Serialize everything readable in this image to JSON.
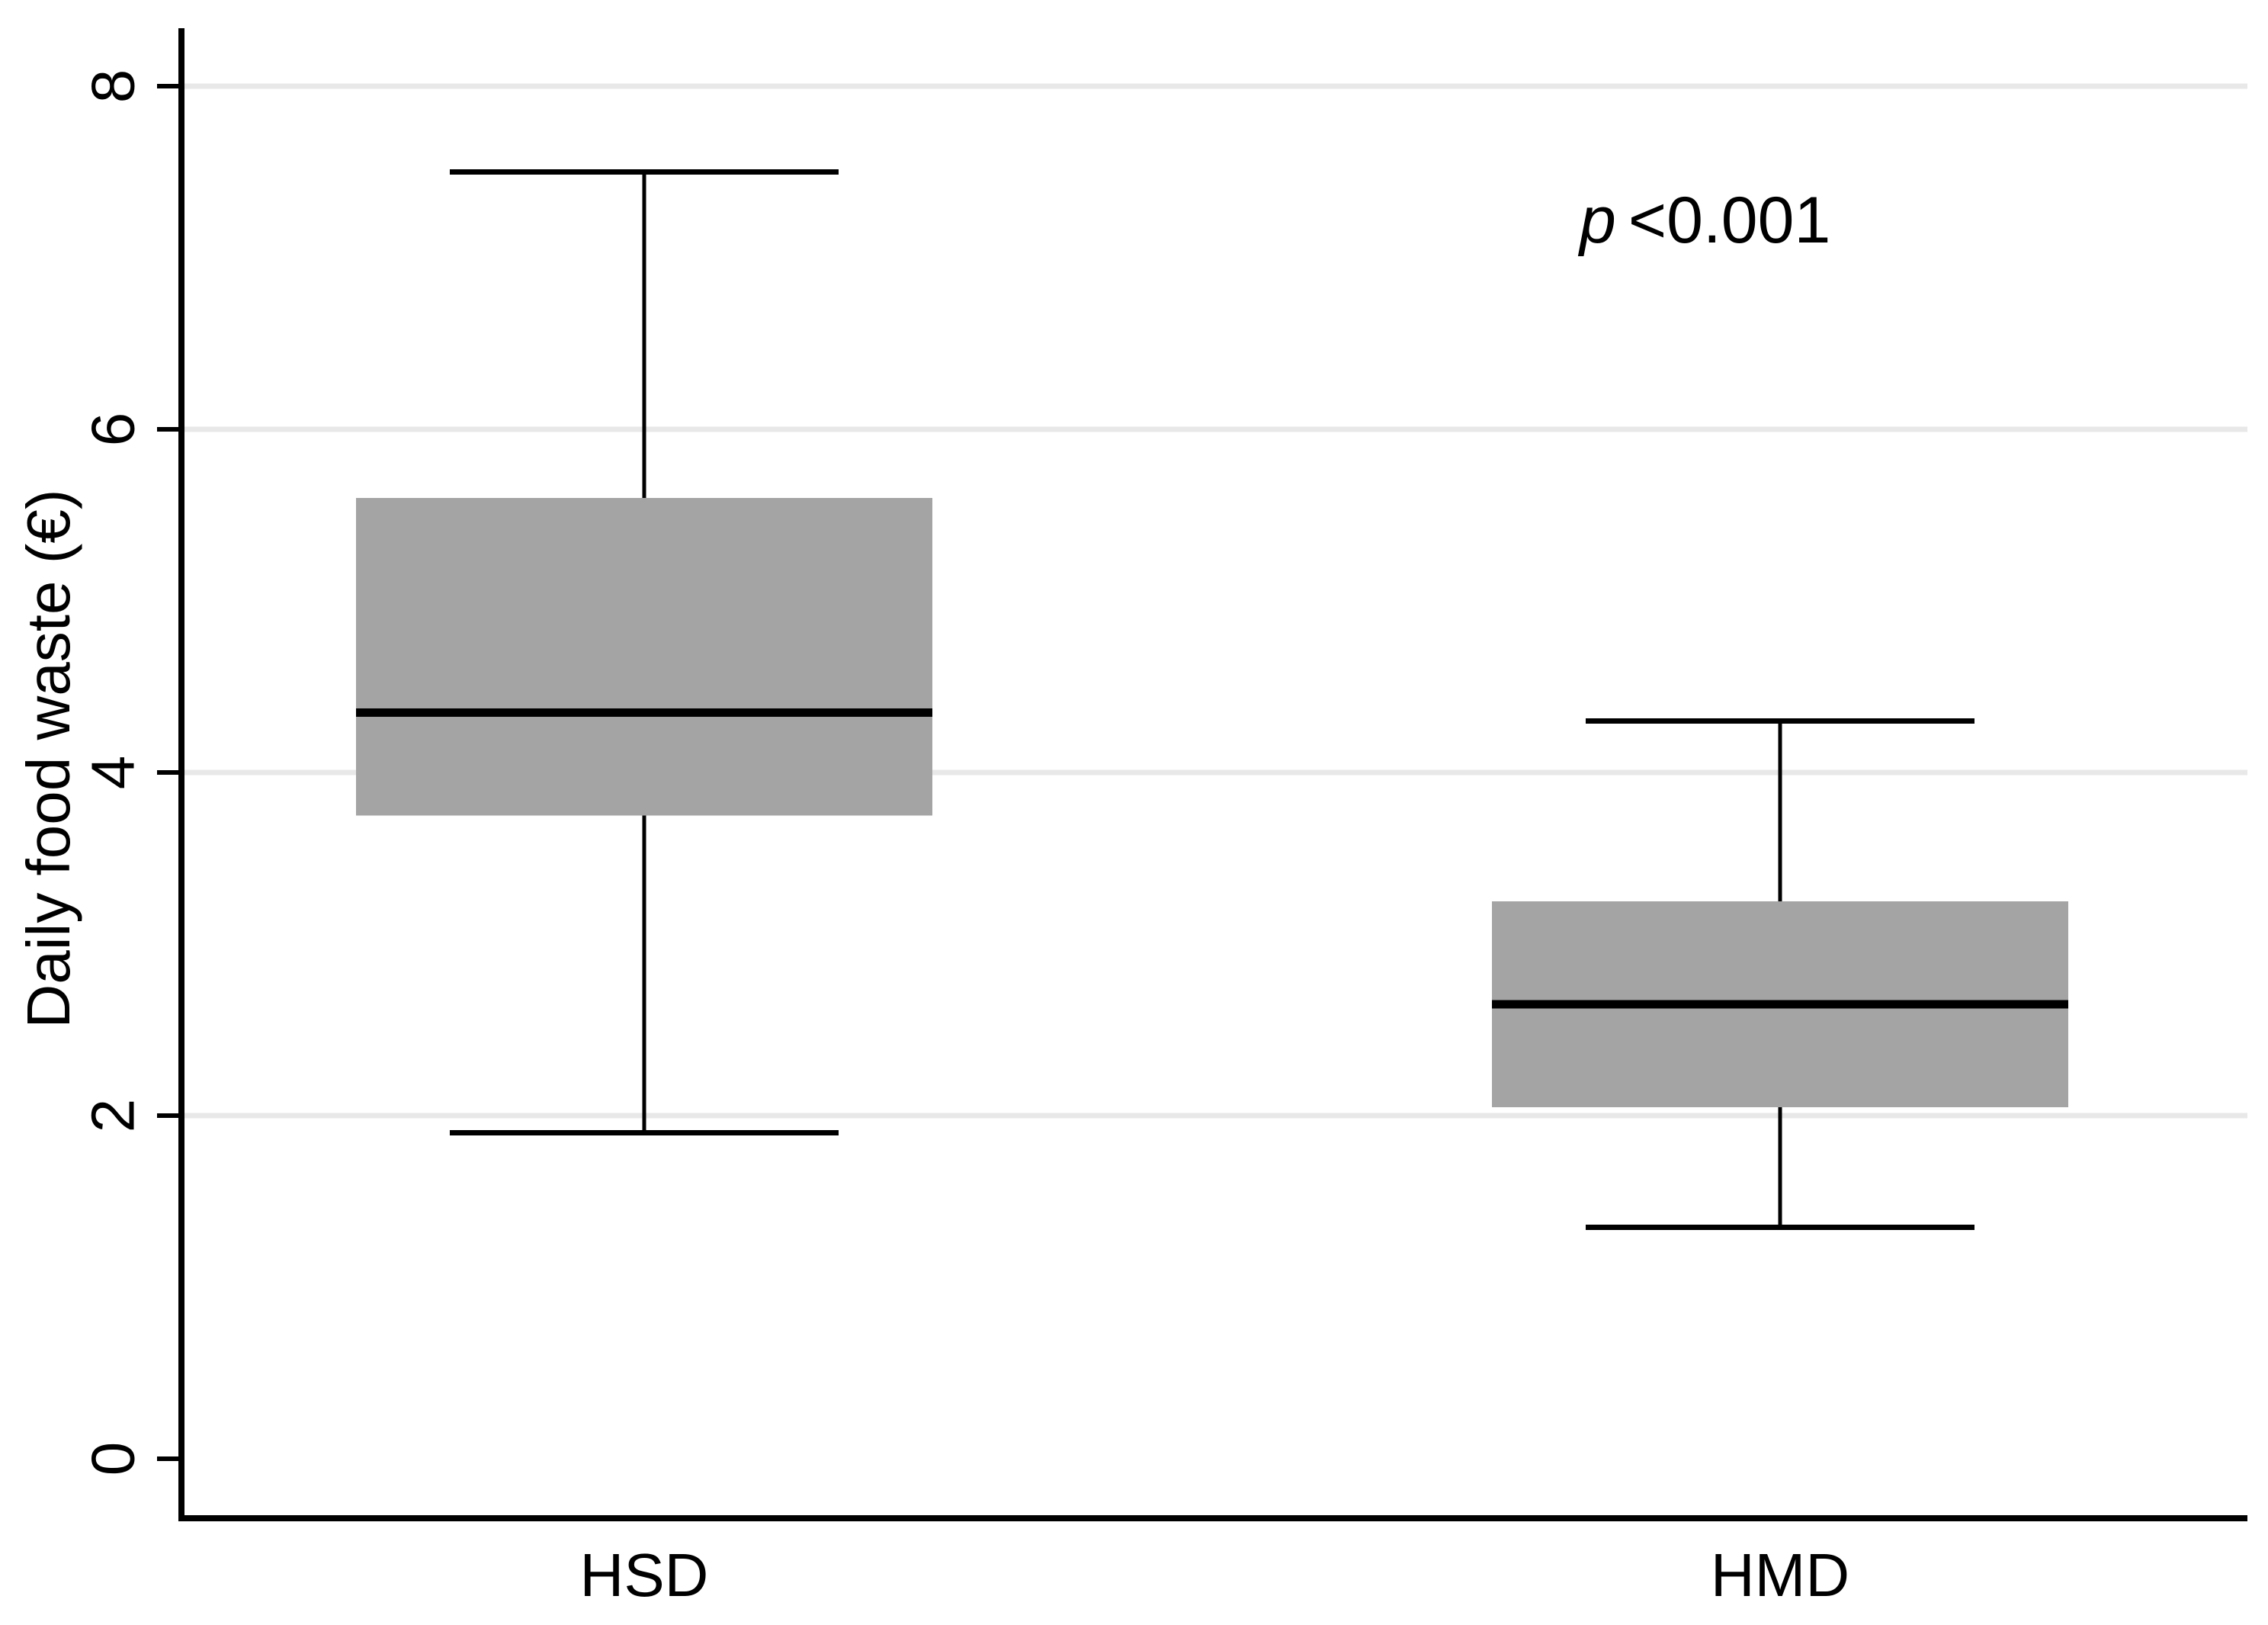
{
  "figure": {
    "background": "#ffffff"
  },
  "chart_data": {
    "type": "box",
    "title": "",
    "xlabel": "",
    "ylabel": "Daily food waste (€)",
    "categories": [
      "HSD",
      "HMD"
    ],
    "yticks": [
      0,
      2,
      4,
      6,
      8
    ],
    "grid_ticks": [
      2,
      4,
      6,
      8
    ],
    "ylim": [
      0,
      8.3
    ],
    "grid": "horizontal-light",
    "legend": "none",
    "annotation": {
      "symbol": "p",
      "value": "<0.001"
    },
    "series": [
      {
        "name": "HSD",
        "whisker_low": 1.9,
        "q1": 3.75,
        "median": 4.35,
        "q3": 5.6,
        "whisker_high": 7.5
      },
      {
        "name": "HMD",
        "whisker_low": 1.35,
        "q1": 2.05,
        "median": 2.65,
        "q3": 3.25,
        "whisker_high": 4.3
      }
    ],
    "colors": {
      "box_fill": "#a4a4a4",
      "median_line": "#000000",
      "whisker_line": "#000000",
      "axis_line": "#000000",
      "grid_line": "#e8e8e8",
      "text": "#000000"
    }
  }
}
